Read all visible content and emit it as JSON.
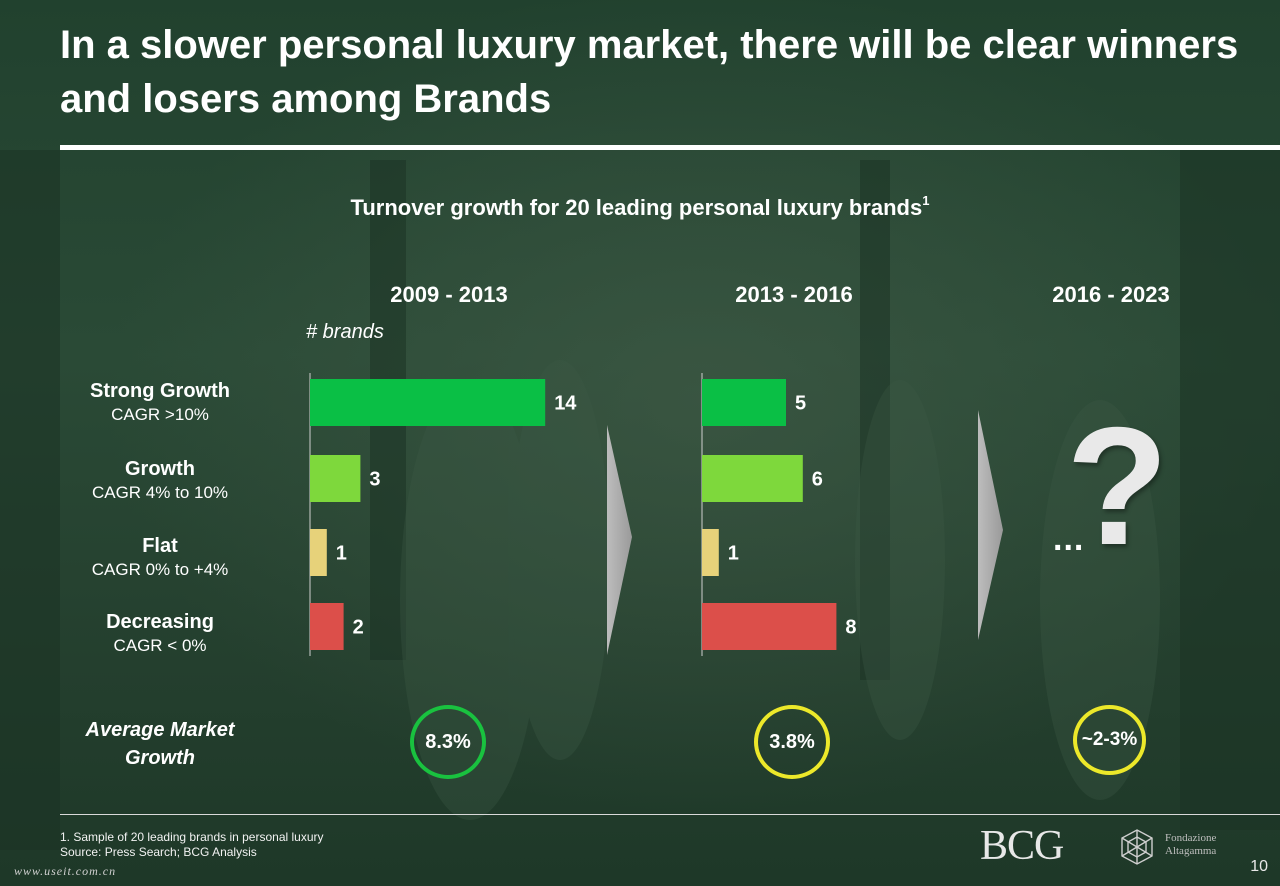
{
  "title": "In a slower personal luxury market, there will be clear winners and losers among Brands",
  "subtitle": "Turnover growth for 20 leading personal luxury brands",
  "subtitle_sup": "1",
  "units_label": "# brands",
  "categories": [
    {
      "name": "Strong Growth",
      "sub": "CAGR >10%"
    },
    {
      "name": "Growth",
      "sub": "CAGR 4% to 10%"
    },
    {
      "name": "Flat",
      "sub": "CAGR 0% to +4%"
    },
    {
      "name": "Decreasing",
      "sub": "CAGR < 0%"
    }
  ],
  "chart_data": [
    {
      "type": "bar",
      "orientation": "horizontal",
      "title": "2009 - 2013",
      "xlabel": "# brands",
      "categories": [
        "Strong Growth",
        "Growth",
        "Flat",
        "Decreasing"
      ],
      "values": [
        14,
        3,
        1,
        2
      ],
      "colors": [
        "#0abf45",
        "#7ed83c",
        "#e7d27a",
        "#dc4f4a"
      ],
      "xlim": [
        0,
        14
      ]
    },
    {
      "type": "bar",
      "orientation": "horizontal",
      "title": "2013 - 2016",
      "categories": [
        "Strong Growth",
        "Growth",
        "Flat",
        "Decreasing"
      ],
      "values": [
        5,
        6,
        1,
        8
      ],
      "colors": [
        "#0abf45",
        "#7ed83c",
        "#e7d27a",
        "#dc4f4a"
      ],
      "xlim": [
        0,
        14
      ]
    }
  ],
  "third_period": {
    "label": "2016 - 2023",
    "ellipsis": "...",
    "question": "?"
  },
  "average_market_growth": {
    "label_line1": "Average Market",
    "label_line2": "Growth",
    "values": [
      {
        "period": "2009 - 2013",
        "value": "8.3%",
        "ring_color": "#19c23f"
      },
      {
        "period": "2013 - 2016",
        "value": "3.8%",
        "ring_color": "#ece82a"
      },
      {
        "period": "2016 - 2023",
        "value": "~2-3%",
        "ring_color": "#ece82a"
      }
    ]
  },
  "footnote": "1. Sample of 20 leading brands in personal luxury",
  "source": "Source: Press Search; BCG Analysis",
  "logos": {
    "bcg": "BCG",
    "foundation_line1": "Fondazione",
    "foundation_line2": "Altagamma"
  },
  "page_number": "10",
  "watermark": "www.useit.com.cn"
}
